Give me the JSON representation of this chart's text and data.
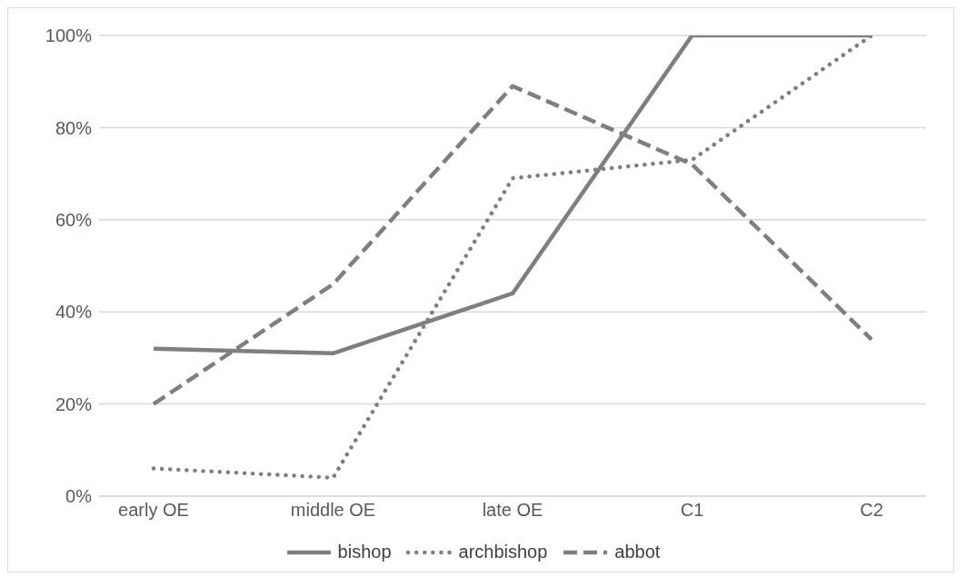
{
  "chart_data": {
    "type": "line",
    "categories": [
      "early OE",
      "middle OE",
      "late OE",
      "C1",
      "C2"
    ],
    "series": [
      {
        "name": "bishop",
        "color": "#7f7f7f",
        "line_style": "solid",
        "values": [
          32,
          31,
          44,
          100,
          100
        ]
      },
      {
        "name": "archbishop",
        "color": "#7f7f7f",
        "line_style": "dotted",
        "values": [
          6,
          4,
          69,
          73,
          100
        ]
      },
      {
        "name": "abbot",
        "color": "#7f7f7f",
        "line_style": "dashed",
        "values": [
          20,
          46,
          89,
          72,
          34
        ]
      }
    ],
    "ylim": [
      0,
      100
    ],
    "yticks": [
      {
        "value": 0,
        "label": "0%"
      },
      {
        "value": 20,
        "label": "20%"
      },
      {
        "value": 40,
        "label": "40%"
      },
      {
        "value": 60,
        "label": "60%"
      },
      {
        "value": 80,
        "label": "80%"
      },
      {
        "value": 100,
        "label": "100%"
      }
    ],
    "grid": "y",
    "legend": "bottom",
    "marker": "none"
  }
}
